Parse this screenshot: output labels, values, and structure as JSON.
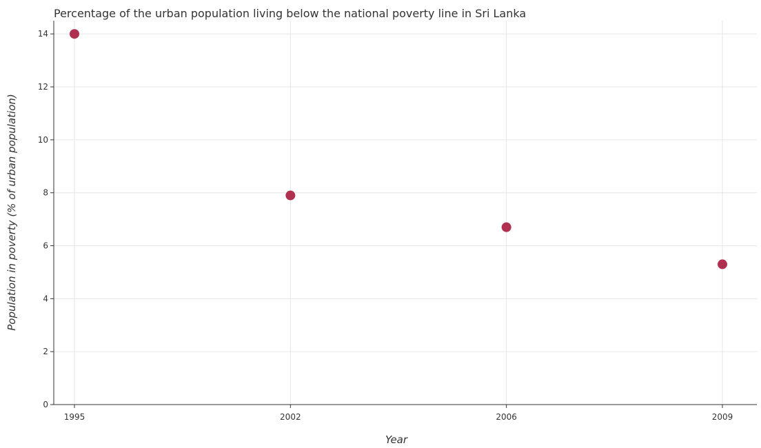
{
  "chart_data": {
    "type": "scatter",
    "title": "Percentage of the urban population living below the national poverty line in Sri Lanka",
    "xlabel": "Year",
    "ylabel": "Population in poverty (% of urban population)",
    "categories": [
      "1995",
      "2002",
      "2006",
      "2009"
    ],
    "values": [
      14.0,
      7.9,
      6.7,
      5.3
    ],
    "yticks": [
      "0",
      "2",
      "4",
      "6",
      "8",
      "10",
      "12",
      "14"
    ],
    "ylim": [
      0,
      14.5
    ],
    "grid": true,
    "marker_color": "#b03050"
  }
}
